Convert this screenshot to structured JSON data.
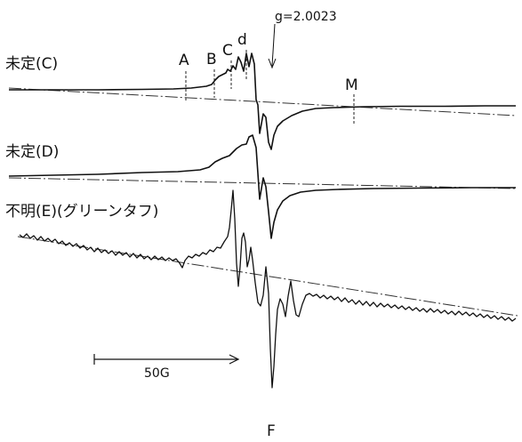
{
  "chart_data": {
    "type": "line",
    "title": "",
    "xlabel": "",
    "ylabel": "",
    "g_label": "g=2.0023",
    "peak_labels": [
      "A",
      "B",
      "C",
      "d",
      "M",
      "F"
    ],
    "series": [
      {
        "name": "未定(C)"
      },
      {
        "name": "未定(D)"
      },
      {
        "name": "不明(E)(グリーンタフ)"
      }
    ],
    "scale_bar": {
      "label": "50G",
      "value": 50,
      "unit": "G"
    }
  }
}
